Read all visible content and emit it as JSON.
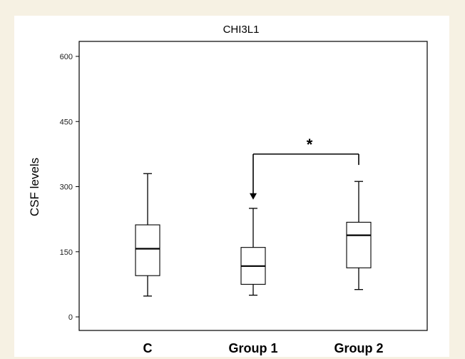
{
  "chart_data": {
    "type": "box",
    "title": "CHI3L1",
    "xlabel": "",
    "ylabel": "CSF levels",
    "ylim": [
      -30,
      630
    ],
    "yticks": [
      0,
      150,
      300,
      450,
      600
    ],
    "grid": false,
    "categories": [
      "C",
      "Group 1",
      "Group 2"
    ],
    "boxes": [
      {
        "category": "C",
        "min": 48,
        "q1": 95,
        "median": 157,
        "q3": 212,
        "max": 330
      },
      {
        "category": "Group 1",
        "min": 50,
        "q1": 75,
        "median": 117,
        "q3": 160,
        "max": 250
      },
      {
        "category": "Group 2",
        "min": 63,
        "q1": 113,
        "median": 188,
        "q3": 218,
        "max": 312
      }
    ],
    "annotations": [
      {
        "type": "significance-bracket",
        "from": "Group 2",
        "to": "Group 1",
        "level": 375,
        "label": "*"
      }
    ]
  }
}
